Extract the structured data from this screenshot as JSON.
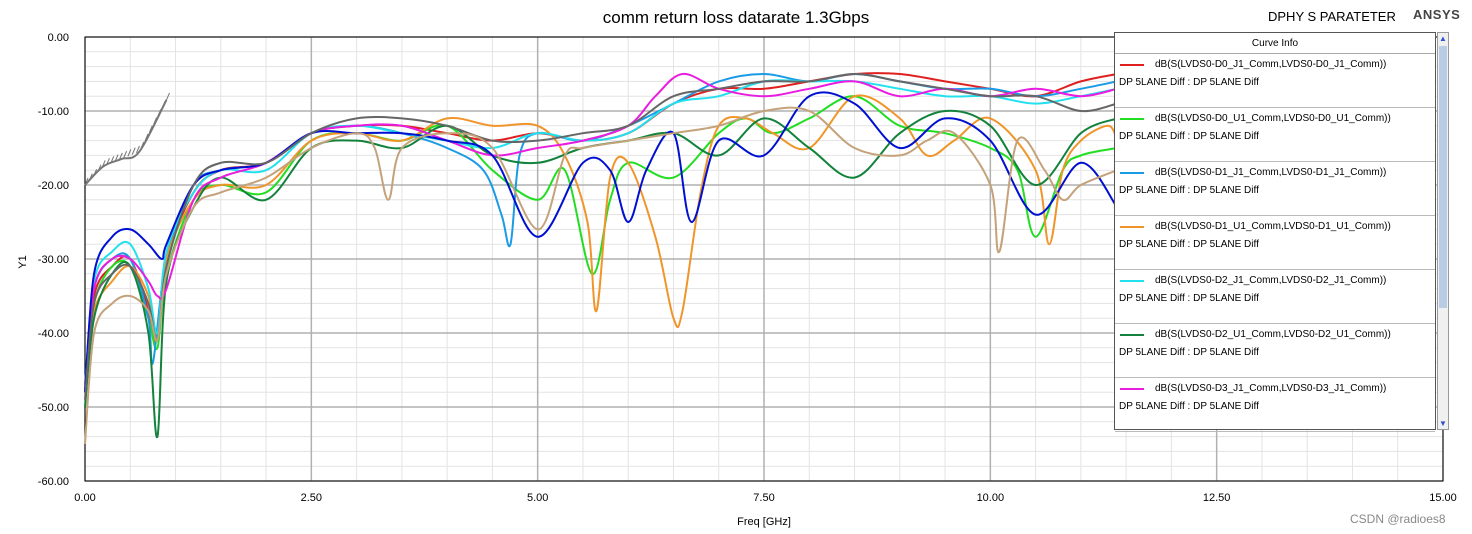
{
  "header": {
    "title": "comm return loss datarate 1.3Gbps",
    "project": "DPHY S PARATETER",
    "brand": "ANSYS"
  },
  "watermark": "CSDN @radioes8",
  "chart_data": {
    "type": "line",
    "title": "comm return loss datarate 1.3Gbps",
    "xlabel": "Freq [GHz]",
    "ylabel": "Y1",
    "xlim": [
      0,
      15
    ],
    "ylim": [
      -60,
      0
    ],
    "xticks": [
      "0.00",
      "2.50",
      "5.00",
      "7.50",
      "10.00",
      "12.50",
      "15.00"
    ],
    "yticks": [
      "0.00",
      "-10.00",
      "-20.00",
      "-30.00",
      "-40.00",
      "-50.00",
      "-60.00"
    ],
    "grid": true,
    "legend_title": "Curve Info",
    "legend_position": "top-right",
    "series": [
      {
        "name": "dB(S(LVDS0-D0_J1_Comm,LVDS0-D0_J1_Comm))",
        "context": "DP 5LANE Diff : DP 5LANE Diff",
        "color": "#e02020",
        "x": [
          0,
          0.1,
          0.3,
          0.5,
          0.7,
          0.78,
          0.9,
          1.2,
          1.5,
          2,
          2.5,
          3,
          3.5,
          4,
          4.5,
          5,
          5.5,
          6,
          6.5,
          7,
          7.5,
          8,
          8.5,
          9,
          9.5,
          10,
          10.5,
          11,
          11.4
        ],
        "y": [
          -48,
          -35,
          -31,
          -30,
          -37,
          -41,
          -30,
          -21,
          -18,
          -17,
          -13,
          -12,
          -12,
          -13,
          -14,
          -13,
          -14,
          -13,
          -9,
          -7,
          -7,
          -6,
          -5,
          -5,
          -6,
          -7,
          -8,
          -6,
          -5
        ]
      },
      {
        "name": "dB(S(LVDS0-D0_U1_Comm,LVDS0-D0_U1_Comm))",
        "context": "DP 5LANE Diff : DP 5LANE Diff",
        "color": "#22dd22",
        "x": [
          0,
          0.1,
          0.3,
          0.5,
          0.7,
          0.8,
          0.9,
          1.2,
          1.5,
          2,
          2.5,
          3,
          3.5,
          4,
          4.5,
          5,
          5.3,
          5.6,
          5.8,
          6,
          6.5,
          7,
          7.3,
          7.6,
          8,
          8.5,
          9,
          9.5,
          10,
          10.3,
          10.5,
          10.8,
          11,
          11.4
        ],
        "y": [
          -47,
          -36,
          -31,
          -31,
          -38,
          -42,
          -32,
          -22,
          -20,
          -21,
          -14,
          -13,
          -14,
          -12,
          -18,
          -22,
          -18,
          -32,
          -22,
          -17,
          -19,
          -13,
          -11,
          -13,
          -11,
          -8,
          -12,
          -13,
          -15,
          -18,
          -27,
          -18,
          -16,
          -15
        ]
      },
      {
        "name": "dB(S(LVDS0-D1_J1_Comm,LVDS0-D1_J1_Comm))",
        "context": "DP 5LANE Diff : DP 5LANE Diff",
        "color": "#1a9be6",
        "x": [
          0,
          0.1,
          0.3,
          0.5,
          0.7,
          0.75,
          0.9,
          1.2,
          1.5,
          2,
          2.5,
          3,
          3.5,
          4,
          4.4,
          4.6,
          4.7,
          4.8,
          5,
          5.5,
          6,
          6.5,
          7,
          7.5,
          8,
          8.5,
          9,
          9.5,
          10,
          10.5,
          11,
          11.4
        ],
        "y": [
          -47,
          -34,
          -30,
          -30,
          -38,
          -44,
          -30,
          -20,
          -18,
          -17,
          -13,
          -12,
          -13,
          -15,
          -18,
          -24,
          -28,
          -16,
          -13,
          -14,
          -12,
          -9,
          -6,
          -5,
          -6,
          -5,
          -6,
          -7,
          -7,
          -8,
          -7,
          -6
        ]
      },
      {
        "name": "dB(S(LVDS0-D1_U1_Comm,LVDS0-D1_U1_Comm))",
        "context": "DP 5LANE Diff : DP 5LANE Diff",
        "color": "#f0952a",
        "x": [
          0,
          0.1,
          0.3,
          0.5,
          0.7,
          0.8,
          0.9,
          1.2,
          1.5,
          2,
          2.5,
          3,
          3.5,
          4,
          4.5,
          5,
          5.3,
          5.55,
          5.65,
          5.8,
          6,
          6.3,
          6.5,
          6.6,
          6.8,
          7,
          7.3,
          7.6,
          8,
          8.5,
          9,
          9.3,
          9.6,
          10,
          10.5,
          10.65,
          10.8,
          11,
          11.3,
          11.4
        ],
        "y": [
          -47,
          -37,
          -33,
          -31,
          -35,
          -41,
          -30,
          -22,
          -20,
          -20,
          -14,
          -13,
          -14,
          -11,
          -12,
          -12,
          -16,
          -25,
          -37,
          -19,
          -17,
          -27,
          -38,
          -37,
          -21,
          -12,
          -11,
          -13,
          -15,
          -8,
          -11,
          -16,
          -14,
          -11,
          -18,
          -28,
          -18,
          -14,
          -12,
          -14
        ]
      },
      {
        "name": "dB(S(LVDS0-D2_J1_Comm,LVDS0-D2_J1_Comm))",
        "context": "DP 5LANE Diff : DP 5LANE Diff",
        "color": "#22e0ee",
        "x": [
          0,
          0.1,
          0.3,
          0.5,
          0.7,
          0.8,
          0.9,
          1.2,
          1.5,
          2,
          2.5,
          3,
          3.5,
          4,
          4.5,
          5,
          5.5,
          6,
          6.5,
          7,
          7.5,
          8,
          8.5,
          9,
          9.5,
          10,
          10.5,
          11,
          11.4
        ],
        "y": [
          -48,
          -33,
          -29,
          -28,
          -34,
          -40,
          -29,
          -21,
          -18,
          -18,
          -13,
          -12,
          -13,
          -14,
          -15,
          -13,
          -14,
          -13,
          -9,
          -8,
          -6,
          -6,
          -6,
          -7,
          -8,
          -8,
          -9,
          -8,
          -7
        ]
      },
      {
        "name": "dB(S(LVDS0-D2_U1_Comm,LVDS0-D2_U1_Comm))",
        "context": "DP 5LANE Diff : DP 5LANE Diff",
        "color": "#13823c",
        "x": [
          0,
          0.1,
          0.3,
          0.5,
          0.7,
          0.8,
          0.9,
          1.2,
          1.5,
          2,
          2.5,
          3,
          3.5,
          4,
          4.5,
          5,
          5.5,
          6,
          6.5,
          7,
          7.5,
          8,
          8.5,
          9,
          9.5,
          10,
          10.5,
          11,
          11.4
        ],
        "y": [
          -50,
          -38,
          -32,
          -31,
          -40,
          -54,
          -33,
          -23,
          -19,
          -22,
          -15,
          -14,
          -15,
          -12,
          -16,
          -17,
          -15,
          -14,
          -13,
          -16,
          -11,
          -15,
          -19,
          -13,
          -10,
          -12,
          -20,
          -13,
          -11
        ]
      },
      {
        "name": "dB(S(LVDS0-D3_J1_Comm,LVDS0-D3_J1_Comm))",
        "context": "DP 5LANE Diff : DP 5LANE Diff",
        "color": "#e81de0",
        "x": [
          0,
          0.1,
          0.3,
          0.5,
          0.7,
          0.8,
          0.9,
          1.2,
          1.5,
          2,
          2.5,
          3,
          3.5,
          4,
          4.5,
          5,
          5.5,
          6,
          6.3,
          6.6,
          7,
          7.5,
          8,
          8.5,
          9,
          9.5,
          10,
          10.5,
          11,
          11.4
        ],
        "y": [
          -48,
          -34,
          -30,
          -30,
          -33,
          -35,
          -34,
          -22,
          -19,
          -17,
          -13,
          -12,
          -12,
          -14,
          -16,
          -15,
          -14,
          -12,
          -8,
          -5,
          -7,
          -8,
          -7,
          -6,
          -8,
          -7,
          -8,
          -7,
          -8,
          -7
        ]
      },
      {
        "color": "#0010d0",
        "x": [
          0,
          0.1,
          0.3,
          0.5,
          0.7,
          0.85,
          0.9,
          1.2,
          1.5,
          2,
          2.5,
          3,
          3.5,
          4,
          4.5,
          5,
          5.5,
          5.8,
          6,
          6.2,
          6.5,
          6.7,
          7,
          7.5,
          8,
          8.5,
          9,
          9.5,
          10,
          10.5,
          11,
          11.4
        ],
        "y": [
          -48,
          -32,
          -27,
          -26,
          -28,
          -30,
          -28,
          -20,
          -18,
          -17,
          -13,
          -13,
          -13,
          -14,
          -16,
          -27,
          -17,
          -18,
          -25,
          -18,
          -13,
          -25,
          -14,
          -16,
          -8,
          -9,
          -15,
          -11,
          -14,
          -24,
          -17,
          -23
        ]
      },
      {
        "color": "#666666",
        "x": [
          0,
          0.1,
          0.3,
          0.5,
          0.7,
          0.8,
          0.9,
          1.2,
          1.5,
          2,
          2.5,
          3,
          3.5,
          4,
          4.5,
          5,
          5.5,
          6,
          6.5,
          7,
          7.5,
          8,
          8.5,
          9,
          9.5,
          10,
          10.5,
          11,
          11.4
        ],
        "y": [
          -49,
          -36,
          -32,
          -31,
          -36,
          -41,
          -31,
          -20,
          -17,
          -17,
          -13,
          -11,
          -11,
          -12,
          -14,
          -14,
          -13,
          -12,
          -8,
          -7,
          -6,
          -6,
          -5,
          -6,
          -7,
          -8,
          -8,
          -10,
          -9
        ]
      },
      {
        "color": "#c4a27a",
        "x": [
          0,
          0.1,
          0.3,
          0.5,
          0.7,
          0.8,
          0.9,
          1.2,
          1.5,
          2,
          2.5,
          3,
          3.2,
          3.35,
          3.5,
          4,
          4.5,
          5,
          5.3,
          5.5,
          6,
          6.5,
          7,
          7.5,
          8,
          8.5,
          9,
          9.3,
          9.6,
          10,
          10.1,
          10.3,
          10.6,
          10.8,
          11,
          11.4
        ],
        "y": [
          -55,
          -40,
          -36,
          -35,
          -37,
          -41,
          -32,
          -23,
          -21,
          -19,
          -15,
          -13,
          -15,
          -22,
          -15,
          -13,
          -15,
          -26,
          -16,
          -15,
          -14,
          -13,
          -12,
          -10,
          -10,
          -15,
          -16,
          -14,
          -13,
          -20,
          -29,
          -14,
          -18,
          -22,
          -20,
          -18
        ]
      },
      {
        "color": "#777777",
        "x": [
          0,
          0.2,
          0.4,
          0.6,
          0.9
        ],
        "y": [
          -20,
          -17.5,
          -16.5,
          -15.5,
          -8.5
        ]
      }
    ]
  }
}
